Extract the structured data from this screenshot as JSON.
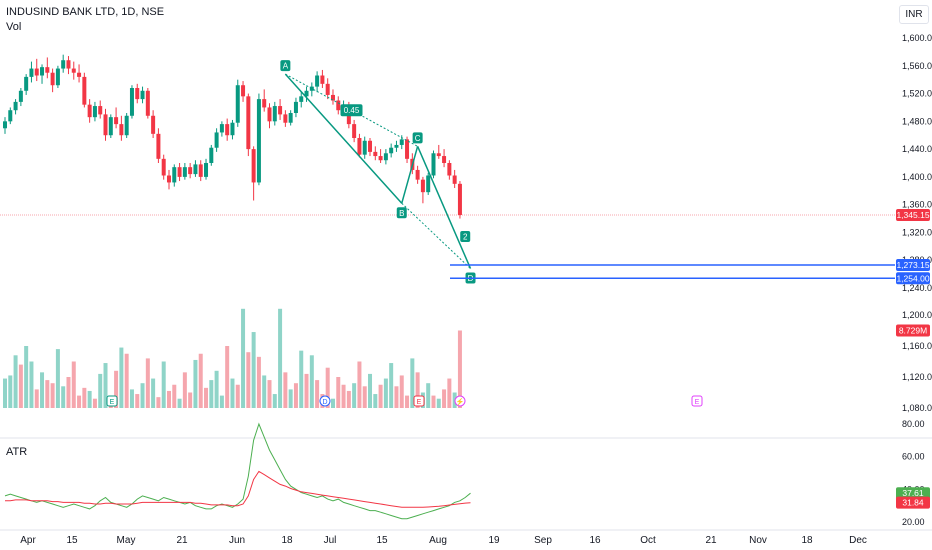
{
  "header": {
    "symbol": "INDUSIND BANK LTD, 1D, NSE",
    "volume_label": "Vol"
  },
  "currency": "INR",
  "atr_label": "ATR",
  "chart_data": [
    {
      "type": "candlestick",
      "title": "INDUSIND BANK LTD, 1D, NSE",
      "ylim": [
        1220,
        1620
      ],
      "yticks": [
        1240,
        1280,
        1320,
        1360,
        1400,
        1440,
        1480,
        1520,
        1560,
        1600
      ],
      "ytick_labels": [
        "1,240.00",
        "1,280.00",
        "1,320.00",
        "1,360.00",
        "1,400.00",
        "1,440.00",
        "1,480.00",
        "1,520.00",
        "1,560.00",
        "1,600.00"
      ],
      "xtick_labels": [
        "Apr",
        "15",
        "May",
        "21",
        "Jun",
        "18",
        "Jul",
        "15",
        "Aug",
        "19",
        "Sep",
        "16",
        "Oct",
        "21",
        "Nov",
        "18",
        "Dec"
      ],
      "last_price": "1,345.15",
      "candles": [
        {
          "o": 1470,
          "h": 1486,
          "l": 1462,
          "c": 1480
        },
        {
          "o": 1480,
          "h": 1500,
          "l": 1476,
          "c": 1496
        },
        {
          "o": 1496,
          "h": 1512,
          "l": 1490,
          "c": 1508
        },
        {
          "o": 1508,
          "h": 1528,
          "l": 1502,
          "c": 1524
        },
        {
          "o": 1524,
          "h": 1548,
          "l": 1518,
          "c": 1544
        },
        {
          "o": 1544,
          "h": 1566,
          "l": 1536,
          "c": 1556
        },
        {
          "o": 1556,
          "h": 1570,
          "l": 1538,
          "c": 1546
        },
        {
          "o": 1546,
          "h": 1562,
          "l": 1534,
          "c": 1558
        },
        {
          "o": 1558,
          "h": 1572,
          "l": 1542,
          "c": 1550
        },
        {
          "o": 1550,
          "h": 1556,
          "l": 1522,
          "c": 1532
        },
        {
          "o": 1532,
          "h": 1560,
          "l": 1528,
          "c": 1556
        },
        {
          "o": 1556,
          "h": 1576,
          "l": 1550,
          "c": 1568
        },
        {
          "o": 1568,
          "h": 1574,
          "l": 1548,
          "c": 1556
        },
        {
          "o": 1556,
          "h": 1566,
          "l": 1540,
          "c": 1550
        },
        {
          "o": 1550,
          "h": 1562,
          "l": 1536,
          "c": 1544
        },
        {
          "o": 1544,
          "h": 1550,
          "l": 1500,
          "c": 1504
        },
        {
          "o": 1504,
          "h": 1512,
          "l": 1478,
          "c": 1486
        },
        {
          "o": 1486,
          "h": 1508,
          "l": 1480,
          "c": 1502
        },
        {
          "o": 1502,
          "h": 1510,
          "l": 1484,
          "c": 1490
        },
        {
          "o": 1490,
          "h": 1498,
          "l": 1452,
          "c": 1460
        },
        {
          "o": 1460,
          "h": 1490,
          "l": 1456,
          "c": 1486
        },
        {
          "o": 1486,
          "h": 1500,
          "l": 1470,
          "c": 1476
        },
        {
          "o": 1476,
          "h": 1488,
          "l": 1452,
          "c": 1460
        },
        {
          "o": 1460,
          "h": 1492,
          "l": 1456,
          "c": 1488
        },
        {
          "o": 1488,
          "h": 1532,
          "l": 1484,
          "c": 1528
        },
        {
          "o": 1528,
          "h": 1534,
          "l": 1506,
          "c": 1512
        },
        {
          "o": 1512,
          "h": 1530,
          "l": 1506,
          "c": 1524
        },
        {
          "o": 1524,
          "h": 1528,
          "l": 1484,
          "c": 1488
        },
        {
          "o": 1488,
          "h": 1496,
          "l": 1456,
          "c": 1462
        },
        {
          "o": 1462,
          "h": 1470,
          "l": 1420,
          "c": 1426
        },
        {
          "o": 1426,
          "h": 1432,
          "l": 1396,
          "c": 1402
        },
        {
          "o": 1402,
          "h": 1410,
          "l": 1382,
          "c": 1392
        },
        {
          "o": 1392,
          "h": 1418,
          "l": 1386,
          "c": 1414
        },
        {
          "o": 1414,
          "h": 1420,
          "l": 1394,
          "c": 1400
        },
        {
          "o": 1400,
          "h": 1420,
          "l": 1396,
          "c": 1414
        },
        {
          "o": 1414,
          "h": 1420,
          "l": 1398,
          "c": 1404
        },
        {
          "o": 1404,
          "h": 1424,
          "l": 1400,
          "c": 1418
        },
        {
          "o": 1418,
          "h": 1424,
          "l": 1394,
          "c": 1400
        },
        {
          "o": 1400,
          "h": 1426,
          "l": 1396,
          "c": 1420
        },
        {
          "o": 1420,
          "h": 1446,
          "l": 1416,
          "c": 1442
        },
        {
          "o": 1442,
          "h": 1470,
          "l": 1436,
          "c": 1464
        },
        {
          "o": 1464,
          "h": 1480,
          "l": 1458,
          "c": 1476
        },
        {
          "o": 1476,
          "h": 1484,
          "l": 1452,
          "c": 1460
        },
        {
          "o": 1460,
          "h": 1482,
          "l": 1454,
          "c": 1478
        },
        {
          "o": 1478,
          "h": 1540,
          "l": 1472,
          "c": 1532
        },
        {
          "o": 1532,
          "h": 1538,
          "l": 1508,
          "c": 1516
        },
        {
          "o": 1516,
          "h": 1520,
          "l": 1430,
          "c": 1440
        },
        {
          "o": 1440,
          "h": 1444,
          "l": 1366,
          "c": 1392
        },
        {
          "o": 1392,
          "h": 1520,
          "l": 1388,
          "c": 1512
        },
        {
          "o": 1512,
          "h": 1526,
          "l": 1494,
          "c": 1500
        },
        {
          "o": 1500,
          "h": 1506,
          "l": 1470,
          "c": 1480
        },
        {
          "o": 1480,
          "h": 1508,
          "l": 1474,
          "c": 1502
        },
        {
          "o": 1502,
          "h": 1512,
          "l": 1482,
          "c": 1490
        },
        {
          "o": 1490,
          "h": 1496,
          "l": 1472,
          "c": 1478
        },
        {
          "o": 1478,
          "h": 1496,
          "l": 1474,
          "c": 1492
        },
        {
          "o": 1492,
          "h": 1514,
          "l": 1486,
          "c": 1508
        },
        {
          "o": 1508,
          "h": 1522,
          "l": 1500,
          "c": 1516
        },
        {
          "o": 1516,
          "h": 1530,
          "l": 1508,
          "c": 1524
        },
        {
          "o": 1524,
          "h": 1536,
          "l": 1516,
          "c": 1530
        },
        {
          "o": 1530,
          "h": 1552,
          "l": 1522,
          "c": 1546
        },
        {
          "o": 1546,
          "h": 1554,
          "l": 1528,
          "c": 1534
        },
        {
          "o": 1534,
          "h": 1542,
          "l": 1512,
          "c": 1518
        },
        {
          "o": 1518,
          "h": 1526,
          "l": 1504,
          "c": 1510
        },
        {
          "o": 1510,
          "h": 1516,
          "l": 1490,
          "c": 1496
        },
        {
          "o": 1496,
          "h": 1510,
          "l": 1488,
          "c": 1504
        },
        {
          "o": 1504,
          "h": 1508,
          "l": 1470,
          "c": 1476
        },
        {
          "o": 1476,
          "h": 1482,
          "l": 1450,
          "c": 1456
        },
        {
          "o": 1456,
          "h": 1462,
          "l": 1428,
          "c": 1432
        },
        {
          "o": 1432,
          "h": 1458,
          "l": 1426,
          "c": 1452
        },
        {
          "o": 1452,
          "h": 1456,
          "l": 1430,
          "c": 1436
        },
        {
          "o": 1436,
          "h": 1444,
          "l": 1424,
          "c": 1430
        },
        {
          "o": 1430,
          "h": 1440,
          "l": 1420,
          "c": 1424
        },
        {
          "o": 1424,
          "h": 1440,
          "l": 1418,
          "c": 1434
        },
        {
          "o": 1434,
          "h": 1448,
          "l": 1428,
          "c": 1442
        },
        {
          "o": 1442,
          "h": 1452,
          "l": 1436,
          "c": 1446
        },
        {
          "o": 1446,
          "h": 1460,
          "l": 1440,
          "c": 1454
        },
        {
          "o": 1454,
          "h": 1458,
          "l": 1420,
          "c": 1426
        },
        {
          "o": 1426,
          "h": 1434,
          "l": 1404,
          "c": 1410
        },
        {
          "o": 1410,
          "h": 1416,
          "l": 1390,
          "c": 1396
        },
        {
          "o": 1396,
          "h": 1400,
          "l": 1362,
          "c": 1378
        },
        {
          "o": 1378,
          "h": 1406,
          "l": 1374,
          "c": 1402
        },
        {
          "o": 1402,
          "h": 1438,
          "l": 1398,
          "c": 1434
        },
        {
          "o": 1434,
          "h": 1446,
          "l": 1426,
          "c": 1430
        },
        {
          "o": 1430,
          "h": 1440,
          "l": 1414,
          "c": 1420
        },
        {
          "o": 1420,
          "h": 1424,
          "l": 1396,
          "c": 1402
        },
        {
          "o": 1402,
          "h": 1410,
          "l": 1384,
          "c": 1390
        },
        {
          "o": 1390,
          "h": 1394,
          "l": 1340,
          "c": 1345.15
        }
      ],
      "levels": [
        {
          "label": "1,273.15",
          "value": 1273.15
        },
        {
          "label": "1,254.00",
          "value": 1254
        }
      ],
      "harmonic_points": [
        {
          "label": "A",
          "candle": 53,
          "price": 1548
        },
        {
          "label": "B",
          "candle": 75,
          "price": 1362
        },
        {
          "label": "C",
          "candle": 78,
          "price": 1444
        },
        {
          "label": "D",
          "candle": 88,
          "price": 1268
        }
      ],
      "ratio_label": "0.45",
      "callout_label": "2"
    },
    {
      "type": "bar",
      "name": "Vol",
      "ylim": [
        1070,
        1215
      ],
      "yticks": [
        1080,
        1120,
        1160,
        1200
      ],
      "ytick_labels": [
        "1,080.00",
        "1,120.00",
        "1,160.00",
        "1,200.00"
      ],
      "last_value": "8.729M",
      "bars": [
        [
          1118,
          "u"
        ],
        [
          1122,
          "u"
        ],
        [
          1148,
          "u"
        ],
        [
          1136,
          "d"
        ],
        [
          1160,
          "u"
        ],
        [
          1140,
          "u"
        ],
        [
          1104,
          "d"
        ],
        [
          1126,
          "u"
        ],
        [
          1116,
          "d"
        ],
        [
          1112,
          "d"
        ],
        [
          1156,
          "u"
        ],
        [
          1108,
          "u"
        ],
        [
          1120,
          "d"
        ],
        [
          1140,
          "d"
        ],
        [
          1096,
          "d"
        ],
        [
          1106,
          "d"
        ],
        [
          1102,
          "u"
        ],
        [
          1092,
          "d"
        ],
        [
          1124,
          "u"
        ],
        [
          1138,
          "u"
        ],
        [
          1096,
          "d"
        ],
        [
          1128,
          "d"
        ],
        [
          1158,
          "u"
        ],
        [
          1150,
          "d"
        ],
        [
          1104,
          "u"
        ],
        [
          1098,
          "d"
        ],
        [
          1112,
          "u"
        ],
        [
          1144,
          "d"
        ],
        [
          1118,
          "u"
        ],
        [
          1094,
          "d"
        ],
        [
          1140,
          "u"
        ],
        [
          1102,
          "d"
        ],
        [
          1110,
          "d"
        ],
        [
          1092,
          "u"
        ],
        [
          1126,
          "d"
        ],
        [
          1100,
          "d"
        ],
        [
          1142,
          "u"
        ],
        [
          1150,
          "d"
        ],
        [
          1106,
          "d"
        ],
        [
          1116,
          "u"
        ],
        [
          1128,
          "u"
        ],
        [
          1096,
          "u"
        ],
        [
          1160,
          "d"
        ],
        [
          1118,
          "u"
        ],
        [
          1110,
          "d"
        ],
        [
          1208,
          "u"
        ],
        [
          1152,
          "d"
        ],
        [
          1178,
          "u"
        ],
        [
          1146,
          "d"
        ],
        [
          1122,
          "u"
        ],
        [
          1116,
          "d"
        ],
        [
          1098,
          "u"
        ],
        [
          1208,
          "u"
        ],
        [
          1126,
          "d"
        ],
        [
          1104,
          "u"
        ],
        [
          1112,
          "d"
        ],
        [
          1154,
          "u"
        ],
        [
          1124,
          "d"
        ],
        [
          1148,
          "u"
        ],
        [
          1116,
          "d"
        ],
        [
          1098,
          "d"
        ],
        [
          1132,
          "d"
        ],
        [
          1092,
          "u"
        ],
        [
          1120,
          "d"
        ],
        [
          1110,
          "d"
        ],
        [
          1102,
          "d"
        ],
        [
          1112,
          "u"
        ],
        [
          1140,
          "d"
        ],
        [
          1108,
          "d"
        ],
        [
          1124,
          "u"
        ],
        [
          1098,
          "u"
        ],
        [
          1110,
          "d"
        ],
        [
          1118,
          "u"
        ],
        [
          1138,
          "u"
        ],
        [
          1108,
          "d"
        ],
        [
          1122,
          "d"
        ],
        [
          1096,
          "d"
        ],
        [
          1144,
          "u"
        ],
        [
          1126,
          "d"
        ],
        [
          1100,
          "u"
        ],
        [
          1112,
          "u"
        ],
        [
          1096,
          "d"
        ],
        [
          1092,
          "u"
        ],
        [
          1104,
          "d"
        ],
        [
          1118,
          "d"
        ],
        [
          1100,
          "u"
        ],
        [
          1180,
          "d"
        ]
      ]
    },
    {
      "type": "line",
      "name": "ATR",
      "ylim": [
        18,
        88
      ],
      "yticks": [
        20,
        40,
        60,
        80
      ],
      "ytick_labels": [
        "20.00",
        "40.00",
        "60.00",
        "80.00"
      ],
      "last_values": [
        "37.61",
        "31.84"
      ],
      "series": [
        {
          "values": [
            36,
            37,
            36,
            35,
            34,
            33,
            32,
            33,
            32,
            31,
            30,
            29,
            30,
            31,
            30,
            29,
            28,
            30,
            33,
            35,
            32,
            31,
            30,
            29,
            31,
            34,
            36,
            35,
            34,
            33,
            35,
            34,
            33,
            32,
            31,
            32,
            30,
            29,
            28,
            28,
            30,
            31,
            30,
            29,
            31,
            34,
            48,
            70,
            80,
            72,
            64,
            58,
            52,
            46,
            42,
            40,
            38,
            37,
            36,
            35,
            36,
            34,
            33,
            34,
            32,
            31,
            30,
            29,
            28,
            27,
            27,
            26,
            25,
            24,
            23,
            22,
            22,
            23,
            24,
            25,
            26,
            27,
            28,
            29,
            30,
            32,
            33,
            35,
            37.61
          ]
        },
        {
          "values": [
            33,
            33,
            33.5,
            33.5,
            33.5,
            33,
            33,
            33,
            33,
            32.5,
            32.5,
            32,
            32,
            32,
            32,
            31.5,
            31.5,
            31,
            31,
            31.5,
            31.5,
            31,
            31,
            31,
            31,
            31.5,
            32,
            32,
            32,
            32,
            32,
            32,
            32,
            32,
            32,
            32,
            31.5,
            31.5,
            31,
            30.5,
            30.5,
            30.5,
            30.5,
            30,
            30,
            31,
            36,
            46,
            51,
            49,
            47,
            45,
            43,
            42,
            40.5,
            39.5,
            38.5,
            38,
            37.5,
            37,
            36.5,
            36,
            35.5,
            35,
            34.5,
            34,
            33.5,
            33,
            32.5,
            32,
            31.5,
            31,
            30.5,
            30,
            29.5,
            29,
            29,
            29,
            29,
            29,
            29.2,
            29.4,
            29.6,
            30,
            30.4,
            30.8,
            31.2,
            31.6,
            31.84
          ]
        }
      ]
    }
  ],
  "colors": {
    "up": "#089981",
    "down": "#f23645",
    "up_vol": "#8fd4c8",
    "down_vol": "#f5a6ad",
    "atr_green": "#4caf50",
    "atr_red": "#f23645",
    "level": "#2962ff",
    "pattern": "#089981",
    "price_line": "#f7a6ad"
  },
  "events": [
    {
      "label": "E",
      "x_tick": "15",
      "kind": "earnings-green"
    },
    {
      "label": "D",
      "x_tick": "18",
      "kind": "dividend-blue"
    },
    {
      "label": "E",
      "x_tick": "Aug",
      "kind": "earnings-red"
    },
    {
      "label": "⚡",
      "x_tick": "Aug",
      "kind": "split-pink"
    },
    {
      "label": "E",
      "x_tick": "Oct",
      "kind": "earnings-purple"
    }
  ]
}
